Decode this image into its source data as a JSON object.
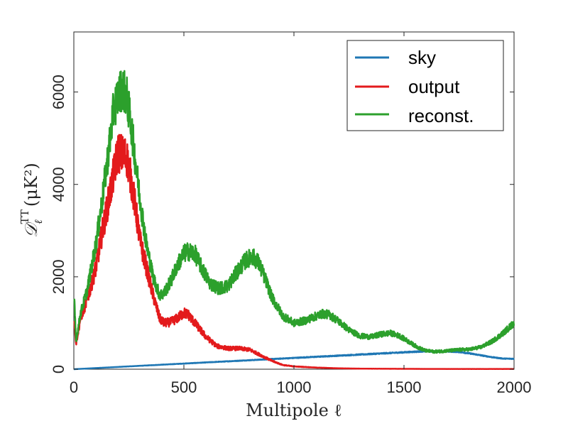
{
  "chart_data": {
    "type": "line",
    "title": "",
    "xlabel": "Multipole ℓ",
    "ylabel": "D_ℓ^TT (μK²)",
    "ylabel_main": "𝒟",
    "ylabel_sub": "ℓ",
    "ylabel_sup": "TT",
    "ylabel_units": "(μK²)",
    "xlim": [
      0,
      2000
    ],
    "ylim": [
      0,
      7300
    ],
    "xticks": [
      0,
      500,
      1000,
      1500,
      2000
    ],
    "xtick_labels": [
      "0",
      "500",
      "1000",
      "1500",
      "2000"
    ],
    "yticks": [
      0,
      2000,
      4000,
      6000
    ],
    "ytick_labels": [
      "0",
      "2000",
      "4000",
      "6000"
    ],
    "grid": false,
    "legend_position": "top-right",
    "series": [
      {
        "name": "sky",
        "color": "#1f77b4",
        "noise": 0.02,
        "x": [
          0,
          1600,
          1650,
          1700,
          1750,
          1800,
          1850,
          1900,
          1950,
          2000
        ],
        "y": [
          0,
          390,
          385,
          385,
          375,
          340,
          300,
          260,
          230,
          225
        ]
      },
      {
        "name": "output",
        "color": "#e31a1c",
        "noise": 0.06,
        "x": [
          2,
          10,
          30,
          60,
          100,
          130,
          160,
          180,
          200,
          220,
          240,
          260,
          280,
          300,
          330,
          360,
          390,
          410,
          440,
          470,
          500,
          520,
          550,
          600,
          650,
          700,
          750,
          800,
          850,
          900,
          950,
          1000,
          1100,
          1200,
          1300,
          1400,
          1500,
          1600,
          1700,
          1800,
          1900,
          2000
        ],
        "y": [
          1100,
          550,
          1100,
          1500,
          2200,
          3000,
          3700,
          4200,
          4700,
          4650,
          4600,
          4100,
          3500,
          2800,
          2200,
          1600,
          1100,
          1000,
          1020,
          1100,
          1220,
          1180,
          1000,
          700,
          500,
          450,
          450,
          420,
          300,
          180,
          90,
          60,
          35,
          20,
          12,
          10,
          8,
          6,
          5,
          5,
          5,
          5
        ]
      },
      {
        "name": "reconst.",
        "color": "#2ca02c",
        "noise": 0.05,
        "x": [
          2,
          10,
          30,
          60,
          100,
          130,
          160,
          180,
          200,
          220,
          240,
          260,
          280,
          300,
          330,
          360,
          390,
          410,
          440,
          470,
          500,
          520,
          550,
          580,
          620,
          660,
          700,
          740,
          780,
          810,
          840,
          870,
          900,
          950,
          1000,
          1050,
          1100,
          1130,
          1160,
          1200,
          1250,
          1300,
          1350,
          1400,
          1440,
          1480,
          1520,
          1560,
          1600,
          1640,
          1700,
          1750,
          1800,
          1850,
          1900,
          1950,
          2000
        ],
        "y": [
          1500,
          600,
          1200,
          1700,
          2700,
          3700,
          4800,
          5600,
          5900,
          6100,
          5900,
          5300,
          4500,
          3700,
          2700,
          2000,
          1600,
          1650,
          1900,
          2250,
          2500,
          2550,
          2500,
          2200,
          1850,
          1750,
          1800,
          2100,
          2350,
          2450,
          2300,
          1950,
          1550,
          1150,
          1000,
          1050,
          1150,
          1200,
          1180,
          1050,
          850,
          720,
          700,
          760,
          780,
          720,
          600,
          480,
          400,
          380,
          400,
          420,
          430,
          480,
          600,
          780,
          1000
        ]
      }
    ]
  }
}
